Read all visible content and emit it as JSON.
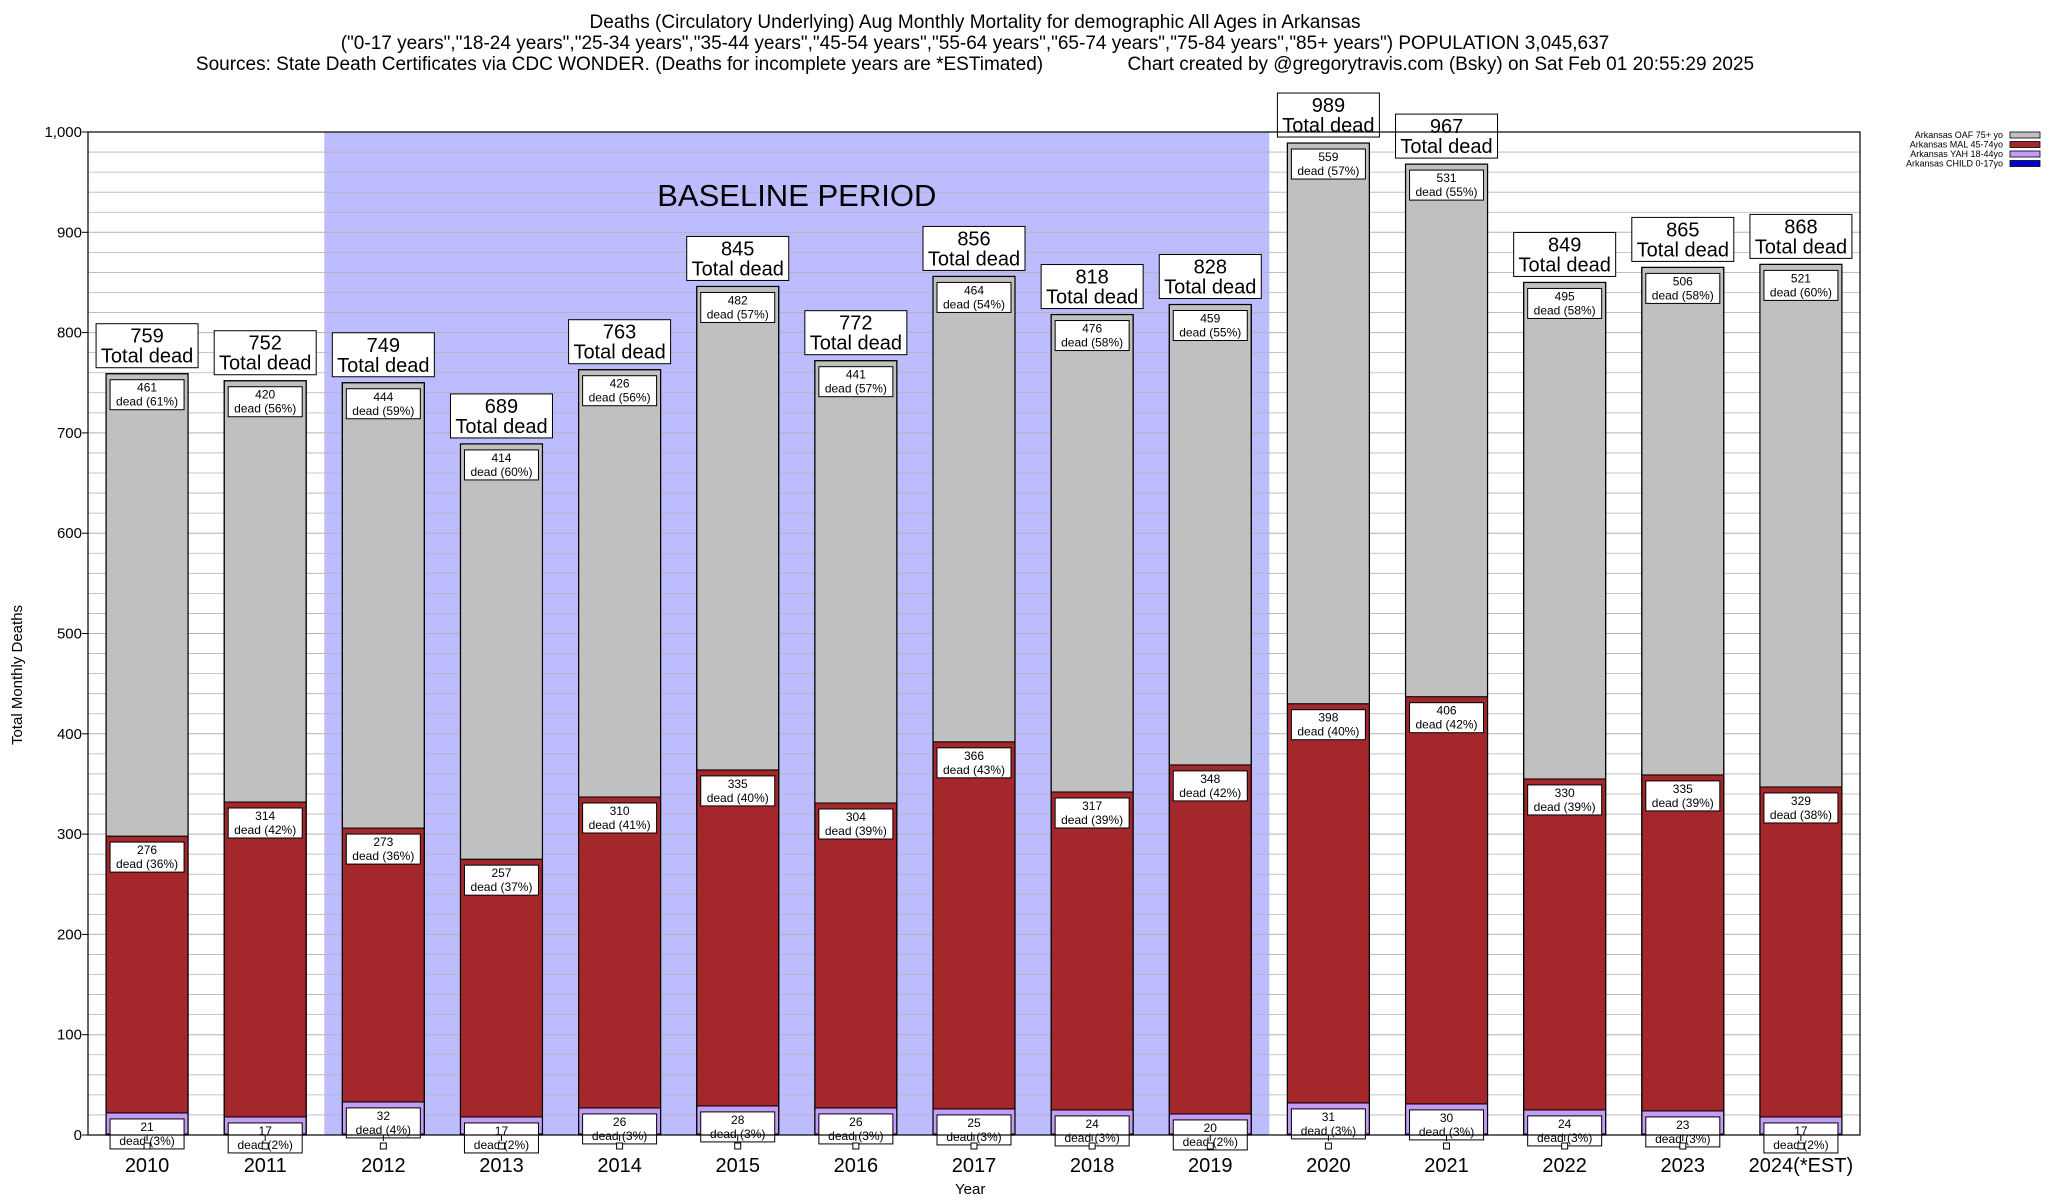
{
  "title": {
    "line1": "Deaths (Circulatory Underlying) Aug Monthly Mortality for demographic All Ages in Arkansas",
    "line2": "(\"0-17 years\",\"18-24 years\",\"25-34 years\",\"35-44 years\",\"45-54 years\",\"55-64 years\",\"65-74 years\",\"75-84 years\",\"85+ years\") POPULATION 3,045,637",
    "line3": "Sources: State Death Certificates via CDC WONDER. (Deaths for incomplete years are *ESTimated)                Chart created by @gregorytravis.com (Bsky) on Sat Feb 01 20:55:29 2025"
  },
  "chart_data": {
    "type": "bar",
    "stacked": true,
    "xlabel": "Year",
    "ylabel": "Total Monthly Deaths",
    "ylim": [
      0,
      1000
    ],
    "yticks": [
      "0",
      "100",
      "200",
      "300",
      "400",
      "500",
      "600",
      "700",
      "800",
      "900",
      "1,000"
    ],
    "grid": "horizontal minor lines every 20",
    "legend_position": "top-right",
    "annotation": "BASELINE PERIOD",
    "baseline_period": [
      "2012",
      "2019"
    ],
    "total_label_suffix": "Total dead",
    "segment_label_word": "dead",
    "categories": [
      "2010",
      "2011",
      "2012",
      "2013",
      "2014",
      "2015",
      "2016",
      "2017",
      "2018",
      "2019",
      "2020",
      "2021",
      "2022",
      "2023",
      "2024(*EST)"
    ],
    "totals": [
      759,
      752,
      749,
      689,
      763,
      845,
      772,
      856,
      818,
      828,
      989,
      967,
      849,
      865,
      868
    ],
    "series": [
      {
        "name": "Arkansas CHILD 0-17yo",
        "color": "#0000cc",
        "values": [
          1,
          1,
          1,
          1,
          1,
          1,
          1,
          1,
          1,
          1,
          1,
          1,
          1,
          1,
          1
        ],
        "labels": [],
        "percents": []
      },
      {
        "name": "Arkansas YAH 18-44yo",
        "color": "#c29cf5",
        "values": [
          21,
          17,
          32,
          17,
          26,
          28,
          26,
          25,
          24,
          20,
          31,
          30,
          24,
          23,
          17
        ],
        "percents": [
          "3%",
          "2%",
          "4%",
          "2%",
          "3%",
          "3%",
          "3%",
          "3%",
          "3%",
          "2%",
          "3%",
          "3%",
          "3%",
          "3%",
          "2%"
        ]
      },
      {
        "name": "Arkansas MAL 45-74yo",
        "color": "#a4282b",
        "values": [
          276,
          314,
          273,
          257,
          310,
          335,
          304,
          366,
          317,
          348,
          398,
          406,
          330,
          335,
          329
        ],
        "percents": [
          "36%",
          "42%",
          "36%",
          "37%",
          "41%",
          "40%",
          "39%",
          "43%",
          "39%",
          "42%",
          "40%",
          "42%",
          "39%",
          "39%",
          "38%"
        ]
      },
      {
        "name": "Arkansas OAF 75+ yo",
        "color": "#c0c0c0",
        "values": [
          461,
          420,
          444,
          414,
          426,
          482,
          441,
          464,
          476,
          459,
          559,
          531,
          495,
          506,
          521
        ],
        "percents": [
          "61%",
          "56%",
          "59%",
          "60%",
          "56%",
          "57%",
          "57%",
          "54%",
          "58%",
          "55%",
          "57%",
          "55%",
          "58%",
          "58%",
          "60%"
        ]
      }
    ],
    "legend_order": [
      "Arkansas OAF 75+ yo",
      "Arkansas MAL 45-74yo",
      "Arkansas YAH 18-44yo",
      "Arkansas CHILD 0-17yo"
    ],
    "colors": {
      "baseline_shade": "#bcbcff",
      "frame": "#000000",
      "grid": "#b4b4b4"
    }
  }
}
